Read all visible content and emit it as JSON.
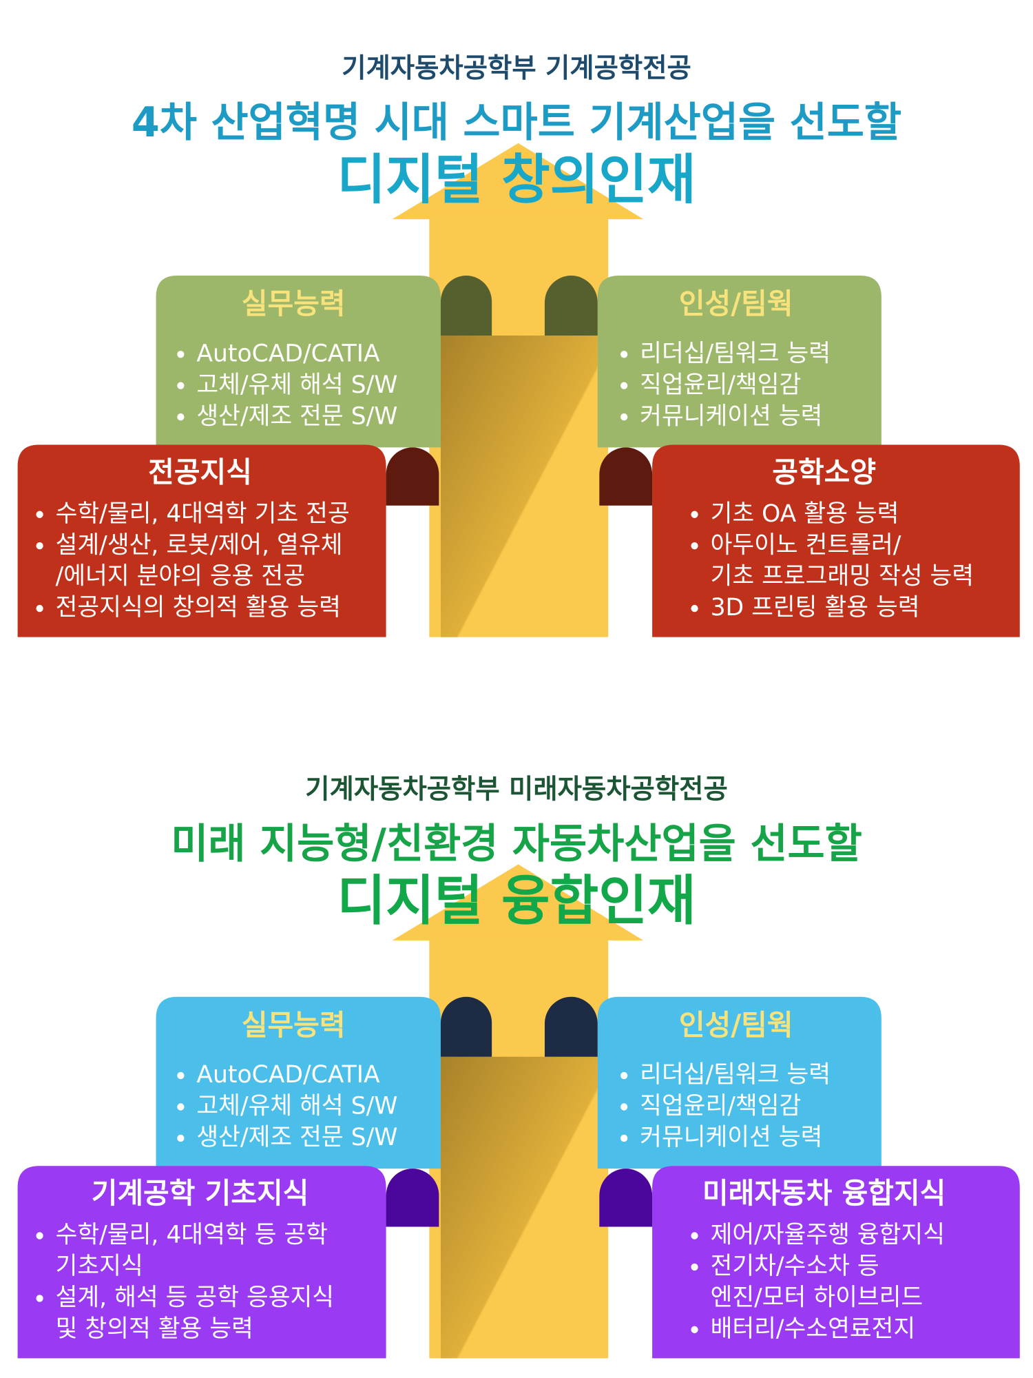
{
  "sections": [
    {
      "department": "기계자동차공학부 기계공학전공",
      "headline": "4차 산업혁명 시대 스마트 기계산업을 선도할",
      "main": "디지털 창의인재",
      "boxes": [
        {
          "title": "실무능력",
          "items": [
            [
              "AutoCAD/CATIA"
            ],
            [
              "고체/유체 해석 S/W"
            ],
            [
              "생산/제조 전문 S/W"
            ]
          ]
        },
        {
          "title": "인성/팀웍",
          "items": [
            [
              "리더십/팀워크 능력"
            ],
            [
              "직업윤리/책임감"
            ],
            [
              "커뮤니케이션 능력"
            ]
          ]
        },
        {
          "title": "전공지식",
          "items": [
            [
              "수학/물리, 4대역학 기초 전공"
            ],
            [
              "설계/생산, 로봇/제어, 열유체",
              "/에너지  분야의 응용 전공"
            ],
            [
              "전공지식의 창의적 활용 능력"
            ]
          ]
        },
        {
          "title": "공학소양",
          "items": [
            [
              "기초 OA 활용 능력"
            ],
            [
              "아두이노 컨트롤러/",
              "기초 프로그래밍 작성 능력"
            ],
            [
              "3D 프린팅 활용 능력"
            ]
          ]
        }
      ]
    },
    {
      "department": "기계자동차공학부 미래자동차공학전공",
      "headline": "미래 지능형/친환경 자동차산업을 선도할",
      "main": "디지털 융합인재",
      "boxes": [
        {
          "title": "실무능력",
          "items": [
            [
              "AutoCAD/CATIA"
            ],
            [
              "고체/유체 해석 S/W"
            ],
            [
              "생산/제조 전문 S/W"
            ]
          ]
        },
        {
          "title": "인성/팀웍",
          "items": [
            [
              "리더십/팀워크 능력"
            ],
            [
              "직업윤리/책임감"
            ],
            [
              "커뮤니케이션 능력"
            ]
          ]
        },
        {
          "title": "기계공학 기초지식",
          "items": [
            [
              "수학/물리, 4대역학 등 공학",
              "기초지식"
            ],
            [
              "설계, 해석 등 공학 응용지식",
              "및 창의적 활용 능력"
            ]
          ]
        },
        {
          "title": "미래자동차 융합지식",
          "items": [
            [
              "제어/자율주행 융합지식"
            ],
            [
              "전기차/수소차 등",
              "엔진/모터 하이브리드"
            ],
            [
              "배터리/수소연료전지"
            ]
          ]
        }
      ]
    }
  ]
}
